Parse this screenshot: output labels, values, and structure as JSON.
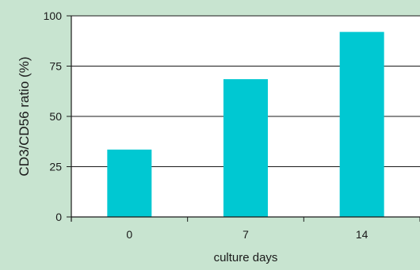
{
  "colors": {
    "page_background": "#c8e4d0",
    "plot_background": "#ffffff",
    "bar": "#00c8d2",
    "axis": "#1a1a1a",
    "grid": "#1a1a1a"
  },
  "chart_data": {
    "type": "bar",
    "title": "",
    "xlabel": "culture days",
    "ylabel": "CD3/CD56 ratio (%)",
    "categories": [
      "0",
      "7",
      "14"
    ],
    "values": [
      33.5,
      68.5,
      92
    ],
    "ylim": [
      0,
      100
    ],
    "yticks": [
      0,
      25,
      50,
      75,
      100
    ],
    "yticks_labels": [
      "0",
      "25",
      "50",
      "75",
      "100"
    ],
    "grid": "horizontal",
    "legend": "none"
  }
}
